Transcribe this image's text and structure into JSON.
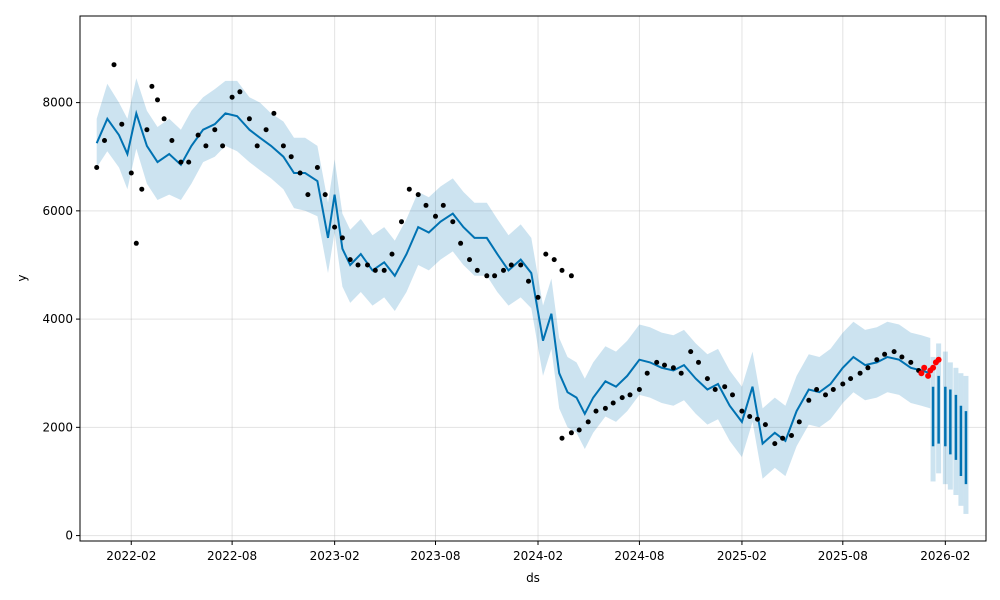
{
  "chart_data": {
    "type": "scatter",
    "xlabel": "ds",
    "ylabel": "y",
    "xlim": [
      "2021-11-01",
      "2026-04-15"
    ],
    "ylim": [
      -100,
      9600
    ],
    "grid": true,
    "x_ticks": [
      "2022-02",
      "2022-08",
      "2023-02",
      "2023-08",
      "2024-02",
      "2024-08",
      "2025-02",
      "2025-08",
      "2026-02"
    ],
    "y_ticks": [
      0,
      2000,
      4000,
      6000,
      8000
    ],
    "colors": {
      "observed": "#000000",
      "recent": "#ff0000",
      "forecast_line": "#0072B2",
      "interval": "#0072B2"
    },
    "forecast": {
      "dates": [
        "2021-12-01",
        "2021-12-20",
        "2022-01-10",
        "2022-01-25",
        "2022-02-10",
        "2022-03-01",
        "2022-03-20",
        "2022-04-10",
        "2022-05-01",
        "2022-05-20",
        "2022-06-10",
        "2022-07-01",
        "2022-07-20",
        "2022-08-10",
        "2022-09-01",
        "2022-09-20",
        "2022-10-10",
        "2022-11-01",
        "2022-11-20",
        "2022-12-10",
        "2023-01-01",
        "2023-01-20",
        "2023-02-01",
        "2023-02-15",
        "2023-03-01",
        "2023-03-20",
        "2023-04-10",
        "2023-05-01",
        "2023-05-20",
        "2023-06-10",
        "2023-07-01",
        "2023-07-20",
        "2023-08-10",
        "2023-09-01",
        "2023-09-20",
        "2023-10-10",
        "2023-11-01",
        "2023-11-20",
        "2023-12-10",
        "2024-01-01",
        "2024-01-20",
        "2024-02-10",
        "2024-02-25",
        "2024-03-10",
        "2024-03-25",
        "2024-04-10",
        "2024-04-25",
        "2024-05-10",
        "2024-06-01",
        "2024-06-20",
        "2024-07-10",
        "2024-08-01",
        "2024-08-20",
        "2024-09-10",
        "2024-10-01",
        "2024-10-20",
        "2024-11-10",
        "2024-12-01",
        "2024-12-20",
        "2025-01-10",
        "2025-02-01",
        "2025-02-20",
        "2025-03-10",
        "2025-04-01",
        "2025-04-20",
        "2025-05-10",
        "2025-06-01",
        "2025-06-20",
        "2025-07-10",
        "2025-08-01",
        "2025-08-20",
        "2025-09-10",
        "2025-10-01",
        "2025-10-20",
        "2025-11-10",
        "2025-12-01",
        "2025-12-20",
        "2026-01-05"
      ],
      "yhat": [
        7250,
        7700,
        7400,
        7050,
        7800,
        7200,
        6900,
        7050,
        6850,
        7200,
        7500,
        7600,
        7800,
        7750,
        7500,
        7350,
        7200,
        7000,
        6700,
        6700,
        6550,
        5500,
        6300,
        5300,
        5000,
        5200,
        4900,
        5050,
        4800,
        5200,
        5700,
        5600,
        5800,
        5950,
        5700,
        5500,
        5500,
        5200,
        4900,
        5100,
        4850,
        3600,
        4100,
        3000,
        2650,
        2550,
        2250,
        2550,
        2850,
        2750,
        2950,
        3250,
        3200,
        3100,
        3050,
        3150,
        2900,
        2700,
        2800,
        2400,
        2100,
        2750,
        1700,
        1900,
        1750,
        2300,
        2700,
        2650,
        2800,
        3100,
        3300,
        3150,
        3200,
        3300,
        3250,
        3100,
        3050,
        3000
      ],
      "lower": [
        6800,
        7100,
        6800,
        6400,
        7150,
        6500,
        6200,
        6300,
        6200,
        6500,
        6900,
        7000,
        7200,
        7100,
        6900,
        6750,
        6600,
        6400,
        6050,
        6000,
        5900,
        4850,
        5600,
        4600,
        4300,
        4500,
        4250,
        4400,
        4150,
        4500,
        5000,
        4900,
        5100,
        5250,
        5000,
        4800,
        4800,
        4500,
        4250,
        4400,
        4200,
        2950,
        3450,
        2350,
        2000,
        1900,
        1600,
        1900,
        2200,
        2100,
        2300,
        2600,
        2550,
        2450,
        2400,
        2500,
        2250,
        2050,
        2150,
        1750,
        1450,
        2100,
        1050,
        1250,
        1100,
        1650,
        2050,
        2000,
        2150,
        2450,
        2650,
        2500,
        2550,
        2650,
        2600,
        2450,
        2400,
        2350
      ],
      "upper": [
        7700,
        8350,
        8000,
        7700,
        8450,
        7850,
        7550,
        7700,
        7500,
        7850,
        8100,
        8250,
        8400,
        8400,
        8100,
        8000,
        7800,
        7650,
        7350,
        7350,
        7200,
        6150,
        6950,
        5950,
        5650,
        5850,
        5550,
        5700,
        5450,
        5850,
        6350,
        6250,
        6450,
        6600,
        6350,
        6150,
        6150,
        5850,
        5550,
        5750,
        5500,
        4250,
        4750,
        3650,
        3300,
        3200,
        2900,
        3200,
        3500,
        3400,
        3600,
        3900,
        3850,
        3750,
        3700,
        3800,
        3550,
        3350,
        3450,
        3050,
        2750,
        3400,
        2350,
        2550,
        2400,
        2950,
        3350,
        3300,
        3450,
        3750,
        3950,
        3800,
        3850,
        3950,
        3900,
        3750,
        3700,
        3650
      ]
    },
    "forecast_tail": {
      "dates": [
        "2026-01-10",
        "2026-01-20",
        "2026-02-01",
        "2026-02-10",
        "2026-02-20",
        "2026-03-01",
        "2026-03-10"
      ],
      "yhat_high": [
        2750,
        2950,
        2750,
        2700,
        2600,
        2400,
        2300
      ],
      "yhat_low": [
        1650,
        1700,
        1650,
        1500,
        1400,
        1100,
        950
      ],
      "upper": [
        3300,
        3550,
        3400,
        3200,
        3100,
        3000,
        2950
      ],
      "lower": [
        1000,
        1150,
        950,
        850,
        750,
        550,
        400
      ]
    },
    "observed_segments": [
      {
        "dates": [
          "2021-12-01",
          "2021-12-15",
          "2022-01-01",
          "2022-01-15",
          "2022-02-01",
          "2022-02-10",
          "2022-02-20",
          "2022-03-01",
          "2022-03-10",
          "2022-03-20",
          "2022-04-01",
          "2022-04-15",
          "2022-05-01",
          "2022-05-15",
          "2022-06-01",
          "2022-06-15",
          "2022-07-01",
          "2022-07-15",
          "2022-08-01",
          "2022-08-15",
          "2022-09-01",
          "2022-09-15",
          "2022-10-01",
          "2022-10-15",
          "2022-11-01",
          "2022-11-15",
          "2022-12-01",
          "2022-12-15",
          "2023-01-01",
          "2023-01-15",
          "2023-02-01",
          "2023-02-15",
          "2023-03-01",
          "2023-03-15",
          "2023-04-01",
          "2023-04-15",
          "2023-05-01",
          "2023-05-15",
          "2023-06-01",
          "2023-06-15",
          "2023-07-01",
          "2023-07-15",
          "2023-08-01",
          "2023-08-15",
          "2023-09-01",
          "2023-09-15",
          "2023-10-01",
          "2023-10-15",
          "2023-11-01",
          "2023-11-15",
          "2023-12-01",
          "2023-12-15",
          "2024-01-01",
          "2024-01-15",
          "2024-02-01",
          "2024-02-15",
          "2024-03-01",
          "2024-03-15",
          "2024-04-01"
        ],
        "values": [
          6800,
          7300,
          8700,
          7600,
          6700,
          5400,
          6400,
          7500,
          8300,
          8050,
          7700,
          7300,
          6900,
          6900,
          7400,
          7200,
          7500,
          7200,
          8100,
          8200,
          7700,
          7200,
          7500,
          7800,
          7200,
          7000,
          6700,
          6300,
          6800,
          6300,
          5700,
          5500,
          5100,
          5000,
          5000,
          4900,
          4900,
          5200,
          5800,
          6400,
          6300,
          6100,
          5900,
          6100,
          5800,
          5400,
          5100,
          4900,
          4800,
          4800,
          4900,
          5000,
          5000,
          4700,
          4400,
          5200,
          5100,
          4900,
          4800
        ]
      },
      {
        "dates": [
          "2024-03-15",
          "2024-04-01",
          "2024-04-15",
          "2024-05-01",
          "2024-05-15",
          "2024-06-01",
          "2024-06-15",
          "2024-07-01",
          "2024-07-15",
          "2024-08-01",
          "2024-08-15",
          "2024-09-01",
          "2024-09-15",
          "2024-10-01",
          "2024-10-15",
          "2024-11-01",
          "2024-11-15",
          "2024-12-01",
          "2024-12-15",
          "2025-01-01",
          "2025-01-15",
          "2025-02-01",
          "2025-02-15",
          "2025-03-01",
          "2025-03-15",
          "2025-04-01",
          "2025-04-15",
          "2025-05-01",
          "2025-05-15",
          "2025-06-01",
          "2025-06-15",
          "2025-07-01",
          "2025-07-15",
          "2025-08-01",
          "2025-08-15",
          "2025-09-01",
          "2025-09-15",
          "2025-10-01",
          "2025-10-15",
          "2025-11-01",
          "2025-11-15",
          "2025-12-01",
          "2025-12-15"
        ],
        "values": [
          1800,
          1900,
          1950,
          2100,
          2300,
          2350,
          2450,
          2550,
          2600,
          2700,
          3000,
          3200,
          3150,
          3100,
          3000,
          3400,
          3200,
          2900,
          2700,
          2750,
          2600,
          2300,
          2200,
          2150,
          2050,
          1700,
          1800,
          1850,
          2100,
          2500,
          2700,
          2600,
          2700,
          2800,
          2900,
          3000,
          3100,
          3250,
          3350,
          3400,
          3300,
          3200,
          3050
        ]
      }
    ],
    "recent_points": {
      "dates": [
        "2025-12-20",
        "2025-12-25",
        "2026-01-01",
        "2026-01-05",
        "2026-01-10",
        "2026-01-15",
        "2026-01-20"
      ],
      "values": [
        3000,
        3100,
        2950,
        3050,
        3100,
        3200,
        3250
      ]
    }
  }
}
